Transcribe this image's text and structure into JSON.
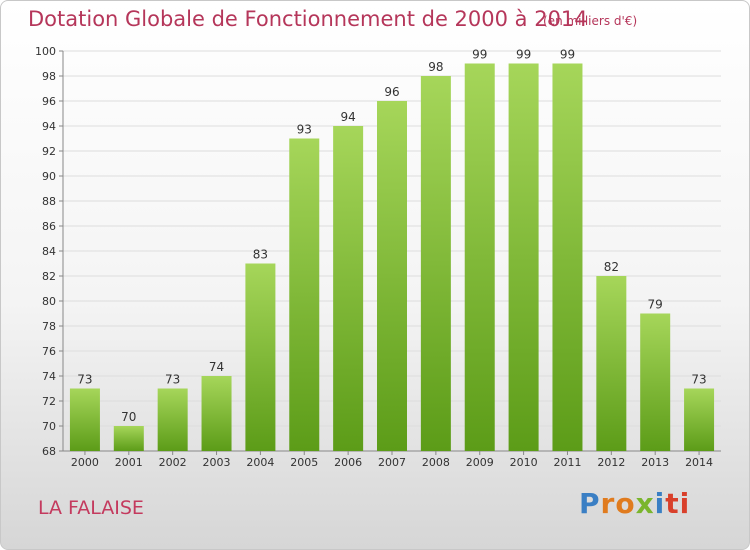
{
  "title": "Dotation Globale de Fonctionnement de 2000 à 2014",
  "subtitle": "(en milliers d'€)",
  "commune": "LA FALAISE",
  "logo": {
    "text": "Proxiti",
    "letters": [
      "P",
      "r",
      "o",
      "x",
      "i",
      "ti"
    ]
  },
  "colors": {
    "title": "#b5365a",
    "bar_top": "#a6d65a",
    "bar_bottom": "#5c9c18",
    "grid": "#dddddd"
  },
  "chart_data": {
    "type": "bar",
    "title": "Dotation Globale de Fonctionnement de 2000 à 2014",
    "subtitle": "(en milliers d'€)",
    "xlabel": "",
    "ylabel": "",
    "categories": [
      "2000",
      "2001",
      "2002",
      "2003",
      "2004",
      "2005",
      "2006",
      "2007",
      "2008",
      "2009",
      "2010",
      "2011",
      "2012",
      "2013",
      "2014"
    ],
    "values": [
      73,
      70,
      73,
      74,
      83,
      93,
      94,
      96,
      98,
      99,
      99,
      99,
      82,
      79,
      73
    ],
    "ylim": [
      68,
      100
    ],
    "yticks": [
      68,
      70,
      72,
      74,
      76,
      78,
      80,
      82,
      84,
      86,
      88,
      90,
      92,
      94,
      96,
      98,
      100
    ],
    "grid": true,
    "legend": "none"
  }
}
